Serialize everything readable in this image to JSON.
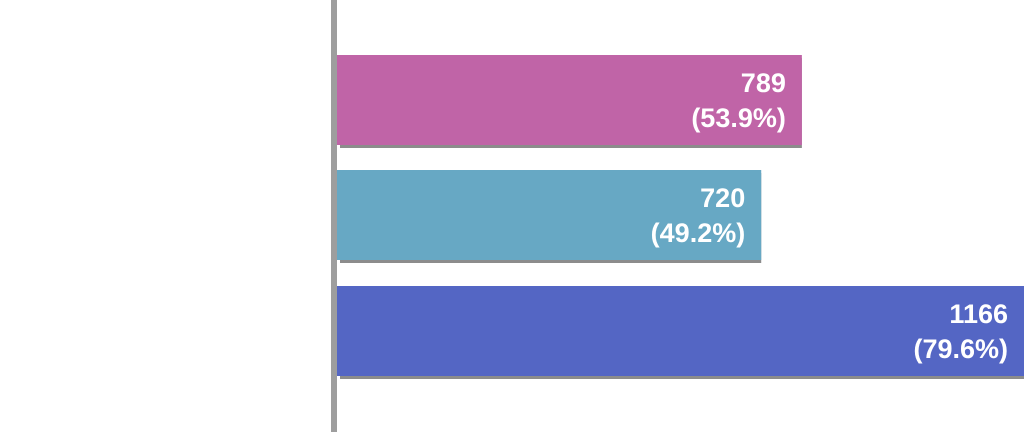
{
  "chart_data": {
    "type": "bar",
    "orientation": "horizontal",
    "categories": [
      "",
      "",
      ""
    ],
    "values": [
      789,
      720,
      1166
    ],
    "percent_labels": [
      "(53.9%)",
      "(49.2%)",
      "(79.6%)"
    ],
    "value_labels": [
      "789",
      "720",
      "1166"
    ],
    "colors": [
      "#c064a7",
      "#67a8c4",
      "#5466c4"
    ],
    "xlim": [
      0,
      1166
    ],
    "title": "",
    "xlabel": "",
    "ylabel": "",
    "grid": false,
    "legend": "none"
  }
}
